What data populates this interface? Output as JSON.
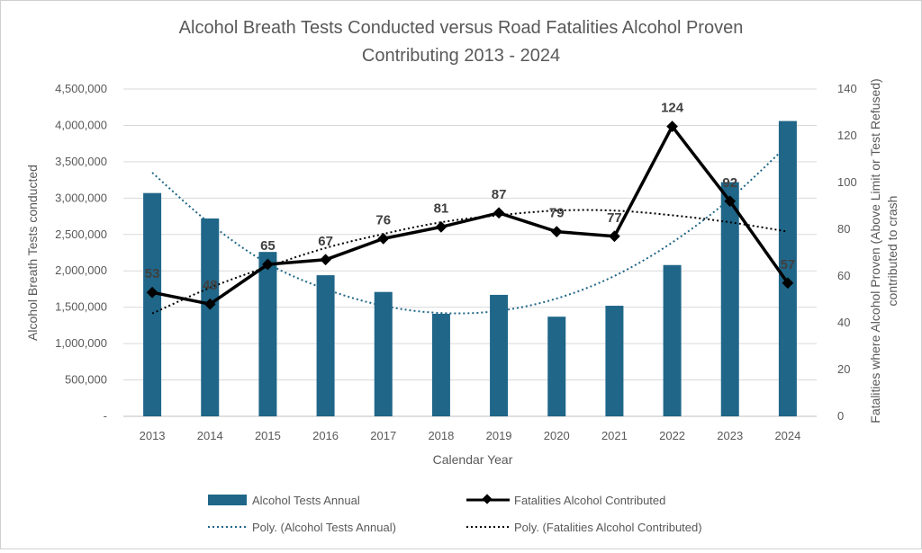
{
  "chart_data": {
    "type": "bar+line",
    "title_lines": [
      "Alcohol Breath Tests Conducted versus Road Fatalities Alcohol Proven",
      "Contributing 2013 - 2024"
    ],
    "categories": [
      "2013",
      "2014",
      "2015",
      "2016",
      "2017",
      "2018",
      "2019",
      "2020",
      "2021",
      "2022",
      "2023",
      "2024"
    ],
    "xlabel": "Calendar Year",
    "ylabel_left": "Alcohol Breath Tests conducted",
    "ylabel_right_lines": [
      "Fatalities where Alcohol Proven (Above Limit or Test Refused)",
      "contributed to crash"
    ],
    "left_axis": {
      "min": 0,
      "max": 4500000,
      "step": 500000,
      "tick_labels": [
        "-",
        "500,000",
        "1,000,000",
        "1,500,000",
        "2,000,000",
        "2,500,000",
        "3,000,000",
        "3,500,000",
        "4,000,000",
        "4,500,000"
      ]
    },
    "right_axis": {
      "min": 0,
      "max": 140,
      "step": 20,
      "tick_labels": [
        "0",
        "20",
        "40",
        "60",
        "80",
        "100",
        "120",
        "140"
      ]
    },
    "grid": true,
    "series": [
      {
        "name": "Alcohol Tests Annual",
        "type": "bar",
        "axis": "left",
        "color": "#1F6688",
        "values": [
          3070000,
          2720000,
          2260000,
          1940000,
          1710000,
          1410000,
          1670000,
          1370000,
          1520000,
          2080000,
          3220000,
          4060000
        ]
      },
      {
        "name": "Fatalities Alcohol Contributed",
        "type": "line",
        "axis": "right",
        "color": "#000000",
        "values": [
          53,
          48,
          65,
          67,
          76,
          81,
          87,
          79,
          77,
          124,
          92,
          57
        ],
        "labels": [
          "53",
          "48",
          "65",
          "67",
          "76",
          "81",
          "87",
          "79",
          "77",
          "124",
          "92",
          "57"
        ]
      },
      {
        "name": "Poly. (Alcohol Tests Annual)",
        "type": "trend",
        "axis": "left",
        "color": "#1F6688",
        "values": [
          3350000,
          2650000,
          2100000,
          1750000,
          1520000,
          1420000,
          1450000,
          1620000,
          1930000,
          2390000,
          2990000,
          3730000
        ]
      },
      {
        "name": "Poly. (Fatalities Alcohol Contributed)",
        "type": "trend",
        "axis": "right",
        "color": "#000000",
        "values": [
          44,
          55,
          64,
          72,
          78,
          83,
          86,
          88,
          88,
          86,
          83,
          79
        ]
      }
    ],
    "legend_position": "bottom"
  }
}
